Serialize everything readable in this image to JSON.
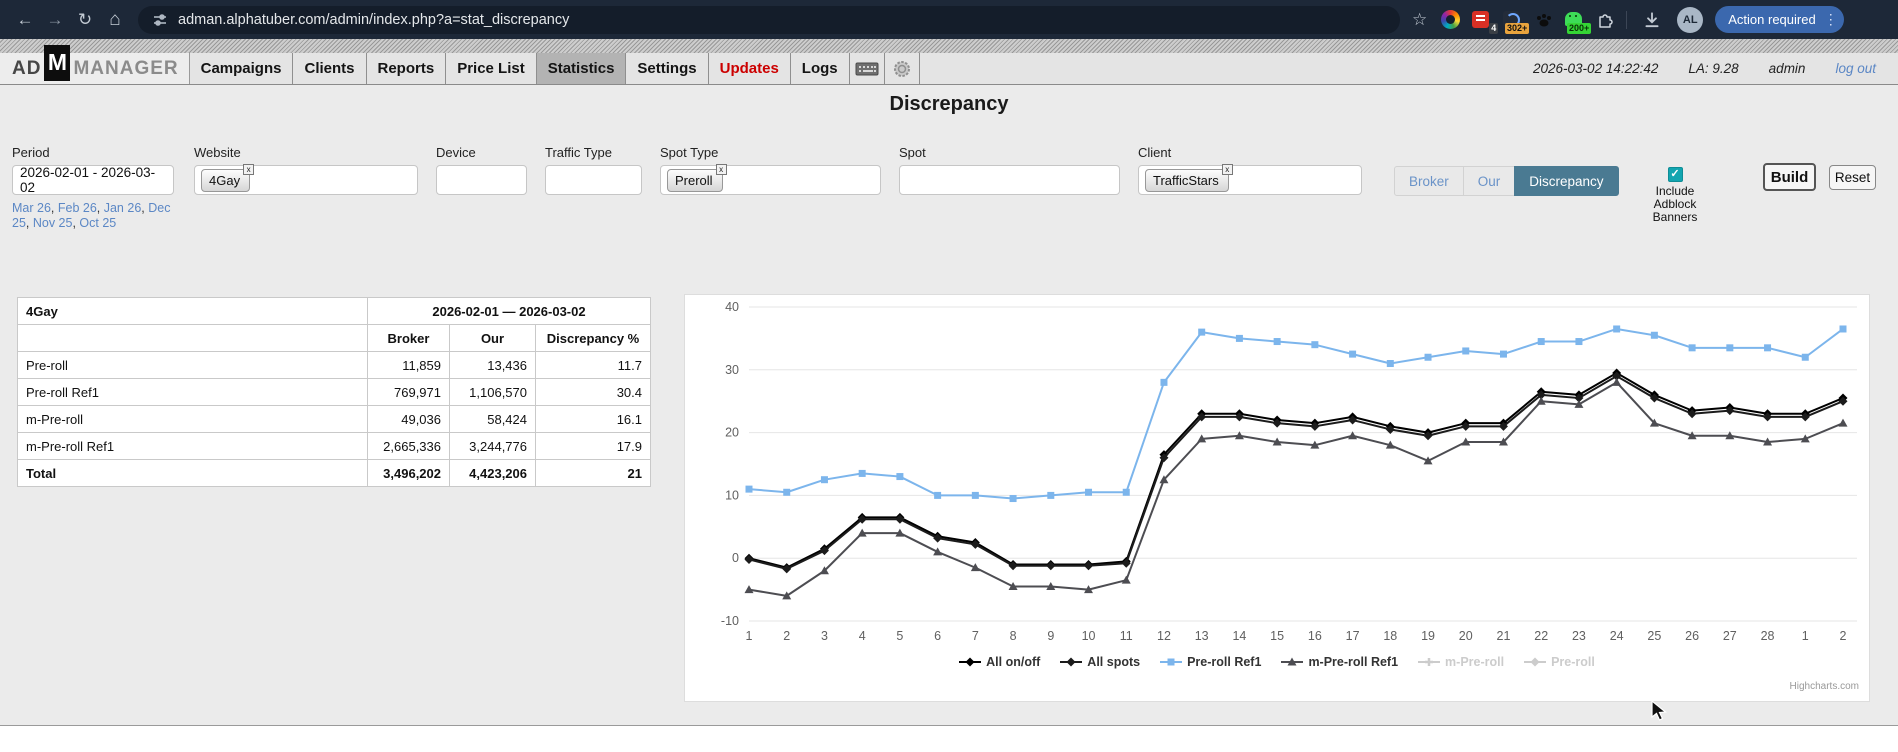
{
  "browser": {
    "url": "adman.alphatuber.com/admin/index.php?a=stat_discrepancy",
    "badges": {
      "red": "4",
      "orange": "302+",
      "green": "200+"
    },
    "avatar": "AL",
    "action_button": "Action required"
  },
  "header": {
    "logo": {
      "part1": "AD",
      "m": "M",
      "part2": "MANAGER"
    },
    "tabs": [
      "Campaigns",
      "Clients",
      "Reports",
      "Price List",
      "Statistics",
      "Settings",
      "Updates",
      "Logs"
    ],
    "datetime": "2026-03-02 14:22:42",
    "la": "LA: 9.28",
    "user": "admin",
    "logout": "log out"
  },
  "page": {
    "title": "Discrepancy"
  },
  "filters": {
    "period": {
      "label": "Period",
      "value": "2026-02-01 - 2026-03-02",
      "quick_links": [
        "Mar 26",
        "Feb 26",
        "Jan 26",
        "Dec 25",
        "Nov 25",
        "Oct 25"
      ]
    },
    "website": {
      "label": "Website",
      "tags": [
        "4Gay"
      ]
    },
    "device": {
      "label": "Device"
    },
    "traffic_type": {
      "label": "Traffic Type"
    },
    "spot_type": {
      "label": "Spot Type",
      "tags": [
        "Preroll"
      ]
    },
    "spot": {
      "label": "Spot"
    },
    "client": {
      "label": "Client",
      "tags": [
        "TrafficStars"
      ]
    },
    "mode_buttons": [
      {
        "label": "Broker",
        "active": false
      },
      {
        "label": "Our",
        "active": false
      },
      {
        "label": "Discrepancy",
        "active": true
      }
    ],
    "adblock": {
      "lines": [
        "Include",
        "Adblock",
        "Banners"
      ],
      "checked": true,
      "check_color": "#12a5b0"
    },
    "build": "Build",
    "reset": "Reset"
  },
  "table": {
    "title_cell": "4Gay",
    "period_cell": "2026-02-01 — 2026-03-02",
    "columns": [
      "Broker",
      "Our",
      "Discrepancy %"
    ],
    "rows": [
      {
        "name": "Pre-roll",
        "broker": "11,859",
        "our": "13,436",
        "discrepancy": "11.7"
      },
      {
        "name": "Pre-roll Ref1",
        "broker": "769,971",
        "our": "1,106,570",
        "discrepancy": "30.4"
      },
      {
        "name": "m-Pre-roll",
        "broker": "49,036",
        "our": "58,424",
        "discrepancy": "16.1"
      },
      {
        "name": "m-Pre-roll Ref1",
        "broker": "2,665,336",
        "our": "3,244,776",
        "discrepancy": "17.9"
      },
      {
        "name": "Total",
        "broker": "3,496,202",
        "our": "4,423,206",
        "discrepancy": "21"
      }
    ]
  },
  "chart_data": {
    "type": "line",
    "x": [
      "1",
      "2",
      "3",
      "4",
      "5",
      "6",
      "7",
      "8",
      "9",
      "10",
      "11",
      "12",
      "13",
      "14",
      "15",
      "16",
      "17",
      "18",
      "19",
      "20",
      "21",
      "22",
      "23",
      "24",
      "25",
      "26",
      "27",
      "28",
      "1",
      "2"
    ],
    "ylim": [
      -10,
      40
    ],
    "yticks": [
      -10,
      0,
      10,
      20,
      30,
      40
    ],
    "grid": true,
    "legend_position": "bottom",
    "credit": "Highcharts.com",
    "series": [
      {
        "name": "All on/off",
        "color": "#000000",
        "marker": "diamond",
        "visible": true,
        "values": [
          0,
          -1.5,
          1.5,
          6.5,
          6.5,
          3.5,
          2.5,
          -1,
          -1,
          -1,
          -0.5,
          16.5,
          23,
          23,
          22,
          21.5,
          22.5,
          21,
          20,
          21.5,
          21.5,
          26.5,
          26,
          29.5,
          26,
          23.5,
          24,
          23,
          23,
          25.5
        ]
      },
      {
        "name": "All spots",
        "color": "#1c1c1c",
        "marker": "diamond",
        "visible": true,
        "values": [
          -0.2,
          -1.7,
          1.2,
          6.2,
          6.2,
          3.2,
          2.2,
          -1.2,
          -1.2,
          -1.2,
          -0.8,
          16,
          22.5,
          22.5,
          21.5,
          21,
          22,
          20.5,
          19.5,
          21,
          21,
          26,
          25.5,
          29,
          25.5,
          23,
          23.5,
          22.5,
          22.5,
          25
        ]
      },
      {
        "name": "Pre-roll Ref1",
        "color": "#7cb5ec",
        "marker": "square",
        "visible": true,
        "values": [
          11,
          10.5,
          12.5,
          13.5,
          13,
          10,
          10,
          9.5,
          10,
          10.5,
          10.5,
          28,
          36,
          35,
          34.5,
          34,
          32.5,
          31,
          32,
          33,
          32.5,
          34.5,
          34.5,
          36.5,
          35.5,
          33.5,
          33.5,
          33.5,
          32,
          36.5
        ]
      },
      {
        "name": "m-Pre-roll Ref1",
        "color": "#4d4d52",
        "marker": "triangle",
        "visible": true,
        "values": [
          -5,
          -6,
          -2,
          4,
          4,
          1,
          -1.5,
          -4.5,
          -4.5,
          -5,
          -3.5,
          12.5,
          19,
          19.5,
          18.5,
          18,
          19.5,
          18,
          15.5,
          18.5,
          18.5,
          25,
          24.5,
          28,
          21.5,
          19.5,
          19.5,
          18.5,
          19,
          21.5
        ]
      },
      {
        "name": "m-Pre-roll",
        "color": "#cccccc",
        "marker": "plus",
        "visible": false
      },
      {
        "name": "Pre-roll",
        "color": "#cccccc",
        "marker": "diamond",
        "visible": false
      }
    ]
  }
}
